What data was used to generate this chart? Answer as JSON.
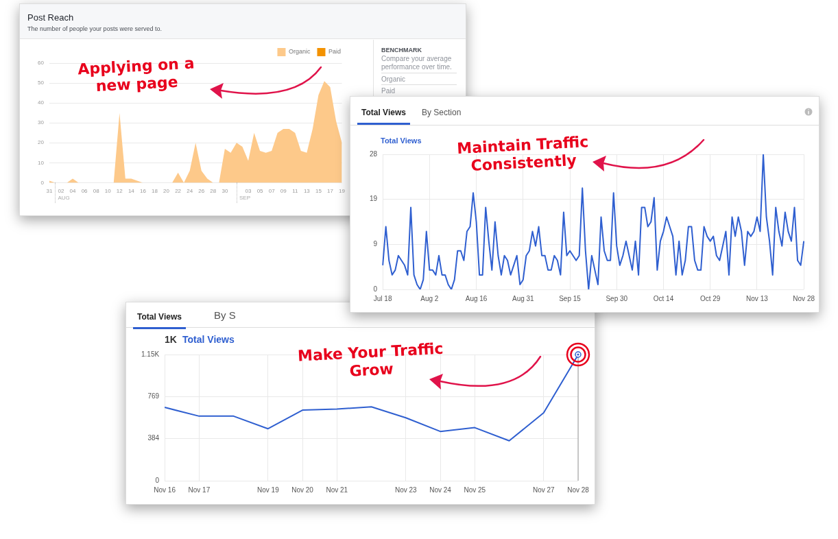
{
  "chart_data": [
    {
      "type": "area",
      "title": "Post Reach",
      "subtitle": "The number of people your posts were served to.",
      "annotations": [
        "Applying on a new page",
        "BENCHMARK",
        "Compare your average performance over time.",
        "Organic",
        "Paid",
        "AUG",
        "SEP"
      ],
      "categories": [
        "31",
        null,
        "02",
        null,
        "04",
        null,
        "06",
        null,
        "08",
        null,
        "10",
        null,
        "12",
        null,
        "14",
        null,
        "16",
        null,
        "18",
        null,
        "20",
        null,
        "22",
        null,
        "24",
        null,
        "26",
        null,
        "28",
        null,
        "30",
        null,
        null,
        null,
        "03",
        null,
        "05",
        null,
        "07",
        null,
        "09",
        null,
        "11",
        null,
        "13",
        null,
        "15",
        null,
        "17",
        null,
        "19"
      ],
      "series": [
        {
          "name": "Organic",
          "color": "#fdc98a",
          "values": [
            1,
            0,
            0,
            0,
            2,
            0,
            0,
            0,
            0,
            0,
            0,
            0,
            35,
            2,
            2,
            1,
            0,
            0,
            0,
            0,
            0,
            0,
            5,
            0,
            6,
            20,
            6,
            2,
            0,
            0,
            17,
            15,
            20,
            18,
            11,
            25,
            16,
            15,
            16,
            25,
            27,
            27,
            25,
            16,
            15,
            27,
            44,
            51,
            48,
            31,
            20
          ]
        },
        {
          "name": "Paid",
          "color": "#f39200",
          "values": [
            null,
            null,
            null,
            null,
            null,
            null,
            null,
            null,
            null,
            null,
            null,
            null,
            null,
            null,
            null,
            null,
            null,
            null,
            null,
            null,
            null,
            null,
            null,
            null,
            null,
            null,
            null,
            null,
            null,
            null,
            null,
            null,
            null,
            null,
            null,
            null,
            null,
            null,
            null,
            null,
            null,
            null,
            null,
            null,
            null,
            null,
            null,
            null,
            null,
            null,
            null
          ]
        }
      ],
      "ylim": [
        0,
        60
      ],
      "yticks": [
        0,
        10,
        20,
        30,
        40,
        50,
        60
      ],
      "grid": "y",
      "legend": "top right",
      "marker": "none"
    },
    {
      "type": "line",
      "annotations": [
        "Maintain Traffic Consistently",
        "Total Views",
        "By Section"
      ],
      "categories": [
        "Jul 18",
        null,
        null,
        null,
        null,
        null,
        null,
        null,
        null,
        null,
        null,
        null,
        null,
        null,
        null,
        "Aug 2",
        null,
        null,
        null,
        null,
        null,
        null,
        null,
        null,
        null,
        null,
        null,
        null,
        null,
        null,
        "Aug 16",
        null,
        null,
        null,
        null,
        null,
        null,
        null,
        null,
        null,
        null,
        null,
        null,
        null,
        null,
        "Aug 31",
        null,
        null,
        null,
        null,
        null,
        null,
        null,
        null,
        null,
        null,
        null,
        null,
        null,
        null,
        "Sep 15",
        null,
        null,
        null,
        null,
        null,
        null,
        null,
        null,
        null,
        null,
        null,
        null,
        null,
        null,
        "Sep 30",
        null,
        null,
        null,
        null,
        null,
        null,
        null,
        null,
        null,
        null,
        null,
        null,
        null,
        null,
        "Oct 14",
        null,
        null,
        null,
        null,
        null,
        null,
        null,
        null,
        null,
        null,
        null,
        null,
        null,
        null,
        "Oct 29",
        null,
        null,
        null,
        null,
        null,
        null,
        null,
        null,
        null,
        null,
        null,
        null,
        null,
        null,
        "Nov 13",
        null,
        null,
        null,
        null,
        null,
        null,
        null,
        null,
        null,
        null,
        null,
        null,
        null,
        null,
        "Nov 28"
      ],
      "series": [
        {
          "name": "Total Views",
          "color": "#2f5fd0",
          "values": [
            5,
            13,
            6,
            3,
            4,
            7,
            6,
            5,
            3,
            17,
            3,
            1,
            0,
            2,
            12,
            4,
            4,
            3,
            7,
            3,
            3,
            1,
            0,
            2,
            8,
            8,
            6,
            12,
            13,
            20,
            14,
            3,
            3,
            17,
            10,
            4,
            14,
            7,
            3,
            7,
            6,
            3,
            5,
            7,
            1,
            2,
            7,
            8,
            12,
            9,
            13,
            7,
            7,
            4,
            4,
            7,
            6,
            3,
            16,
            7,
            8,
            7,
            6,
            7,
            21,
            8,
            0,
            7,
            4,
            1,
            15,
            8,
            6,
            6,
            20,
            9,
            5,
            7,
            10,
            7,
            4,
            10,
            3,
            17,
            17,
            13,
            14,
            19,
            4,
            10,
            12,
            15,
            13,
            11,
            3,
            10,
            3,
            6,
            13,
            13,
            6,
            4,
            4,
            13,
            11,
            10,
            11,
            7,
            6,
            9,
            12,
            3,
            15,
            11,
            15,
            12,
            5,
            12,
            11,
            12,
            15,
            12,
            28,
            15,
            10,
            3,
            17,
            12,
            9,
            16,
            12,
            10,
            17,
            6,
            5,
            10
          ]
        }
      ],
      "ylim": [
        0,
        28
      ],
      "yticks": [
        0,
        {
          "value": 9.33,
          "label": "9"
        },
        {
          "value": 18.67,
          "label": "19"
        },
        28
      ],
      "grid": true,
      "legend": "top left",
      "marker": "none"
    },
    {
      "type": "line",
      "annotations": [
        "Make Your Traffic Grow",
        "Total Views",
        "By S",
        "1K"
      ],
      "categories": [
        "Nov 16",
        "Nov 17",
        null,
        "Nov 19",
        "Nov 20",
        "Nov 21",
        null,
        "Nov 23",
        "Nov 24",
        "Nov 25",
        null,
        "Nov 27",
        "Nov 28"
      ],
      "series": [
        {
          "name": "Total Views",
          "color": "#2f5fd0",
          "values": [
            670,
            590,
            590,
            475,
            645,
            655,
            675,
            575,
            450,
            485,
            365,
            620,
            1150
          ]
        }
      ],
      "ylim": [
        0,
        1153
      ],
      "yticks": [
        0,
        384,
        769,
        {
          "value": 1153,
          "label": "1.15K"
        }
      ],
      "ref_lines": [
        {
          "axis": "x",
          "value": "Nov 28",
          "color": "#999999"
        }
      ],
      "grid": true,
      "legend": "top left",
      "marker": "none"
    }
  ]
}
